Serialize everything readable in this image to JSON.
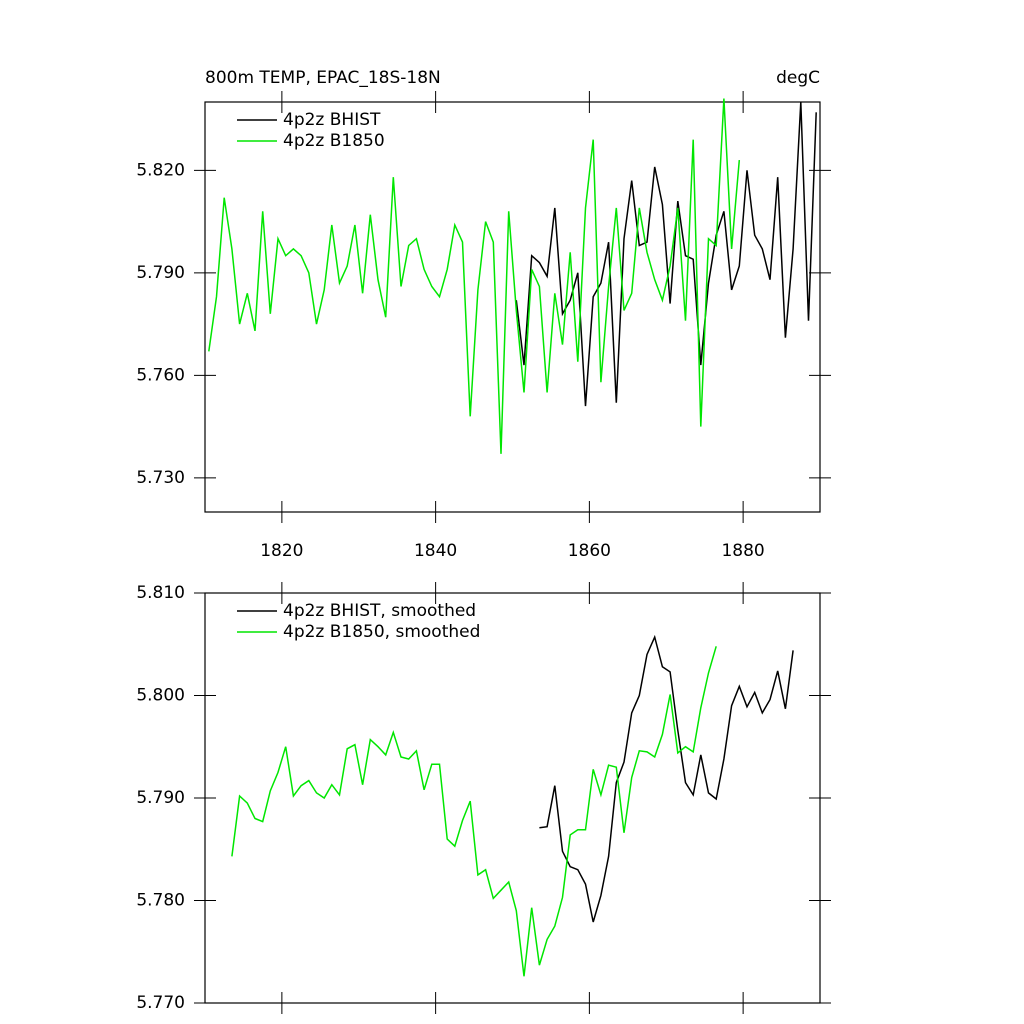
{
  "chart_data": [
    {
      "type": "line",
      "title": "800m TEMP, EPAC_18S-18N",
      "units": "degC",
      "xlim": [
        1810,
        1890
      ],
      "xticks": [
        1820,
        1840,
        1860,
        1880
      ],
      "show_xtick_labels": true,
      "ylim": [
        5.72,
        5.84
      ],
      "yticks": [
        {
          "value": 5.73,
          "label": "5.730"
        },
        {
          "value": 5.76,
          "label": "5.760"
        },
        {
          "value": 5.79,
          "label": "5.790"
        },
        {
          "value": 5.82,
          "label": "5.820"
        }
      ],
      "legend": "upper left",
      "series": [
        {
          "name": "4p2z BHIST",
          "color": "#000000",
          "x": [
            1850.5,
            1851.5,
            1852.5,
            1853.5,
            1854.5,
            1855.5,
            1856.5,
            1857.5,
            1858.5,
            1859.5,
            1860.5,
            1861.5,
            1862.5,
            1863.5,
            1864.5,
            1865.5,
            1866.5,
            1867.5,
            1868.5,
            1869.5,
            1870.5,
            1871.5,
            1872.5,
            1873.5,
            1874.5,
            1875.5,
            1876.5,
            1877.5,
            1878.5,
            1879.5,
            1880.5,
            1881.5,
            1882.5,
            1883.5,
            1884.5,
            1885.5,
            1886.5,
            1887.5,
            1888.5,
            1889.5
          ],
          "values": [
            5.782,
            5.763,
            5.795,
            5.793,
            5.789,
            5.809,
            5.778,
            5.782,
            5.79,
            5.751,
            5.783,
            5.787,
            5.799,
            5.752,
            5.8,
            5.817,
            5.798,
            5.799,
            5.821,
            5.81,
            5.781,
            5.811,
            5.795,
            5.794,
            5.763,
            5.787,
            5.801,
            5.808,
            5.785,
            5.792,
            5.82,
            5.801,
            5.797,
            5.788,
            5.818,
            5.771,
            5.797,
            5.84,
            5.776,
            5.837
          ]
        },
        {
          "name": "4p2z B1850",
          "color": "#00e600",
          "x": [
            1810.5,
            1811.5,
            1812.5,
            1813.5,
            1814.5,
            1815.5,
            1816.5,
            1817.5,
            1818.5,
            1819.5,
            1820.5,
            1821.5,
            1822.5,
            1823.5,
            1824.5,
            1825.5,
            1826.5,
            1827.5,
            1828.5,
            1829.5,
            1830.5,
            1831.5,
            1832.5,
            1833.5,
            1834.5,
            1835.5,
            1836.5,
            1837.5,
            1838.5,
            1839.5,
            1840.5,
            1841.5,
            1842.5,
            1843.5,
            1844.5,
            1845.5,
            1846.5,
            1847.5,
            1848.5,
            1849.5,
            1850.5,
            1851.5,
            1852.5,
            1853.5,
            1854.5,
            1855.5,
            1856.5,
            1857.5,
            1858.5,
            1859.5,
            1860.5,
            1861.5,
            1862.5,
            1863.5,
            1864.5,
            1865.5,
            1866.5,
            1867.5,
            1868.5,
            1869.5,
            1870.5,
            1871.5,
            1872.5,
            1873.5,
            1874.5,
            1875.5,
            1876.5,
            1877.5,
            1878.5,
            1879.5
          ],
          "values": [
            5.767,
            5.783,
            5.812,
            5.797,
            5.775,
            5.784,
            5.773,
            5.808,
            5.778,
            5.8,
            5.795,
            5.797,
            5.795,
            5.79,
            5.775,
            5.785,
            5.804,
            5.787,
            5.792,
            5.804,
            5.784,
            5.807,
            5.788,
            5.777,
            5.818,
            5.786,
            5.798,
            5.8,
            5.791,
            5.786,
            5.783,
            5.791,
            5.804,
            5.799,
            5.748,
            5.785,
            5.805,
            5.799,
            5.737,
            5.808,
            5.779,
            5.755,
            5.791,
            5.786,
            5.755,
            5.784,
            5.769,
            5.796,
            5.764,
            5.809,
            5.829,
            5.758,
            5.786,
            5.809,
            5.779,
            5.784,
            5.809,
            5.796,
            5.788,
            5.782,
            5.792,
            5.809,
            5.776,
            5.829,
            5.745,
            5.8,
            5.798,
            5.841,
            5.797,
            5.823
          ]
        }
      ]
    },
    {
      "type": "line",
      "xlim": [
        1810,
        1890
      ],
      "xticks": [
        1820,
        1840,
        1860,
        1880
      ],
      "show_xtick_labels": false,
      "ylim": [
        5.77,
        5.81
      ],
      "yticks": [
        {
          "value": 5.77,
          "label": "5.770"
        },
        {
          "value": 5.78,
          "label": "5.780"
        },
        {
          "value": 5.79,
          "label": "5.790"
        },
        {
          "value": 5.8,
          "label": "5.800"
        },
        {
          "value": 5.81,
          "label": "5.810"
        }
      ],
      "legend": "upper left",
      "series": [
        {
          "name": "4p2z BHIST, smoothed",
          "color": "#000000",
          "x": [
            1853.5,
            1854.5,
            1855.5,
            1856.5,
            1857.5,
            1858.5,
            1859.5,
            1860.5,
            1861.5,
            1862.5,
            1863.5,
            1864.5,
            1865.5,
            1866.5,
            1867.5,
            1868.5,
            1869.5,
            1870.5,
            1871.5,
            1872.5,
            1873.5,
            1874.5,
            1875.5,
            1876.5,
            1877.5,
            1878.5,
            1879.5,
            1880.5,
            1881.5,
            1882.5,
            1883.5,
            1884.5,
            1885.5,
            1886.5
          ],
          "values": [
            5.7871,
            5.7872,
            5.7912,
            5.7848,
            5.7833,
            5.783,
            5.7816,
            5.7779,
            5.7805,
            5.7843,
            5.7915,
            5.7935,
            5.7983,
            5.8,
            5.804,
            5.8057,
            5.8028,
            5.8023,
            5.7966,
            5.7915,
            5.7903,
            5.7942,
            5.7905,
            5.7899,
            5.7938,
            5.799,
            5.8009,
            5.7989,
            5.8003,
            5.7983,
            5.7996,
            5.8024,
            5.7987,
            5.8044
          ]
        },
        {
          "name": "4p2z B1850, smoothed",
          "color": "#00e600",
          "x": [
            1813.5,
            1814.5,
            1815.5,
            1816.5,
            1817.5,
            1818.5,
            1819.5,
            1820.5,
            1821.5,
            1822.5,
            1823.5,
            1824.5,
            1825.5,
            1826.5,
            1827.5,
            1828.5,
            1829.5,
            1830.5,
            1831.5,
            1832.5,
            1833.5,
            1834.5,
            1835.5,
            1836.5,
            1837.5,
            1838.5,
            1839.5,
            1840.5,
            1841.5,
            1842.5,
            1843.5,
            1844.5,
            1845.5,
            1846.5,
            1847.5,
            1848.5,
            1849.5,
            1850.5,
            1851.5,
            1852.5,
            1853.5,
            1854.5,
            1855.5,
            1856.5,
            1857.5,
            1858.5,
            1859.5,
            1860.5,
            1861.5,
            1862.5,
            1863.5,
            1864.5,
            1865.5,
            1866.5,
            1867.5,
            1868.5,
            1869.5,
            1870.5,
            1871.5,
            1872.5,
            1873.5,
            1874.5,
            1875.5,
            1876.5
          ],
          "values": [
            5.7843,
            5.7902,
            5.7895,
            5.788,
            5.7877,
            5.7907,
            5.7925,
            5.795,
            5.7902,
            5.7912,
            5.7917,
            5.7905,
            5.79,
            5.7913,
            5.7903,
            5.7948,
            5.7952,
            5.7913,
            5.7957,
            5.795,
            5.7942,
            5.7964,
            5.794,
            5.7938,
            5.7946,
            5.7908,
            5.7933,
            5.7933,
            5.786,
            5.7853,
            5.7878,
            5.7897,
            5.7825,
            5.783,
            5.7802,
            5.781,
            5.7818,
            5.779,
            5.7726,
            5.7793,
            5.7737,
            5.7762,
            5.7775,
            5.7803,
            5.7864,
            5.7869,
            5.7869,
            5.7928,
            5.7903,
            5.7932,
            5.793,
            5.7866,
            5.792,
            5.7946,
            5.7945,
            5.794,
            5.7962,
            5.8001,
            5.7944,
            5.795,
            5.7945,
            5.7988,
            5.8022,
            5.8048
          ]
        }
      ]
    }
  ]
}
